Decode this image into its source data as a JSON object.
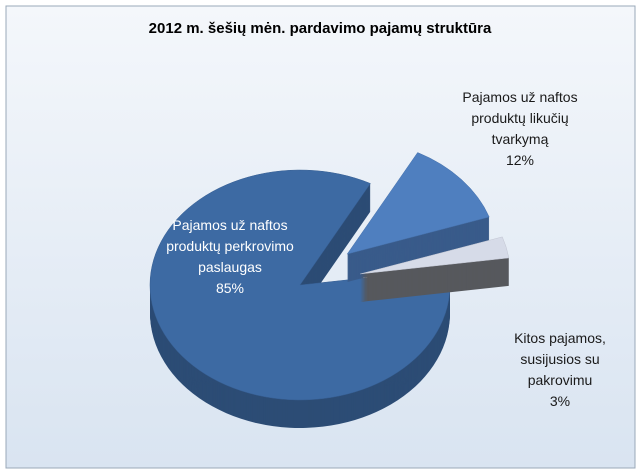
{
  "chart_data": {
    "type": "pie",
    "title": "2012 m. šešių mėn. pardavimo pajamų struktūra",
    "categories": [
      "Pajamos už naftos produktų perkrovimo paslaugas",
      "Pajamos už naftos produktų likučių tvarkymą",
      "Kitos pajamos, susijusios su pakrovimu"
    ],
    "values": [
      85,
      12,
      3
    ],
    "value_labels": [
      "85%",
      "12%",
      "3%"
    ],
    "colors": [
      "#3d6aa3",
      "#4f7fbf",
      "#d6dbe8"
    ]
  }
}
